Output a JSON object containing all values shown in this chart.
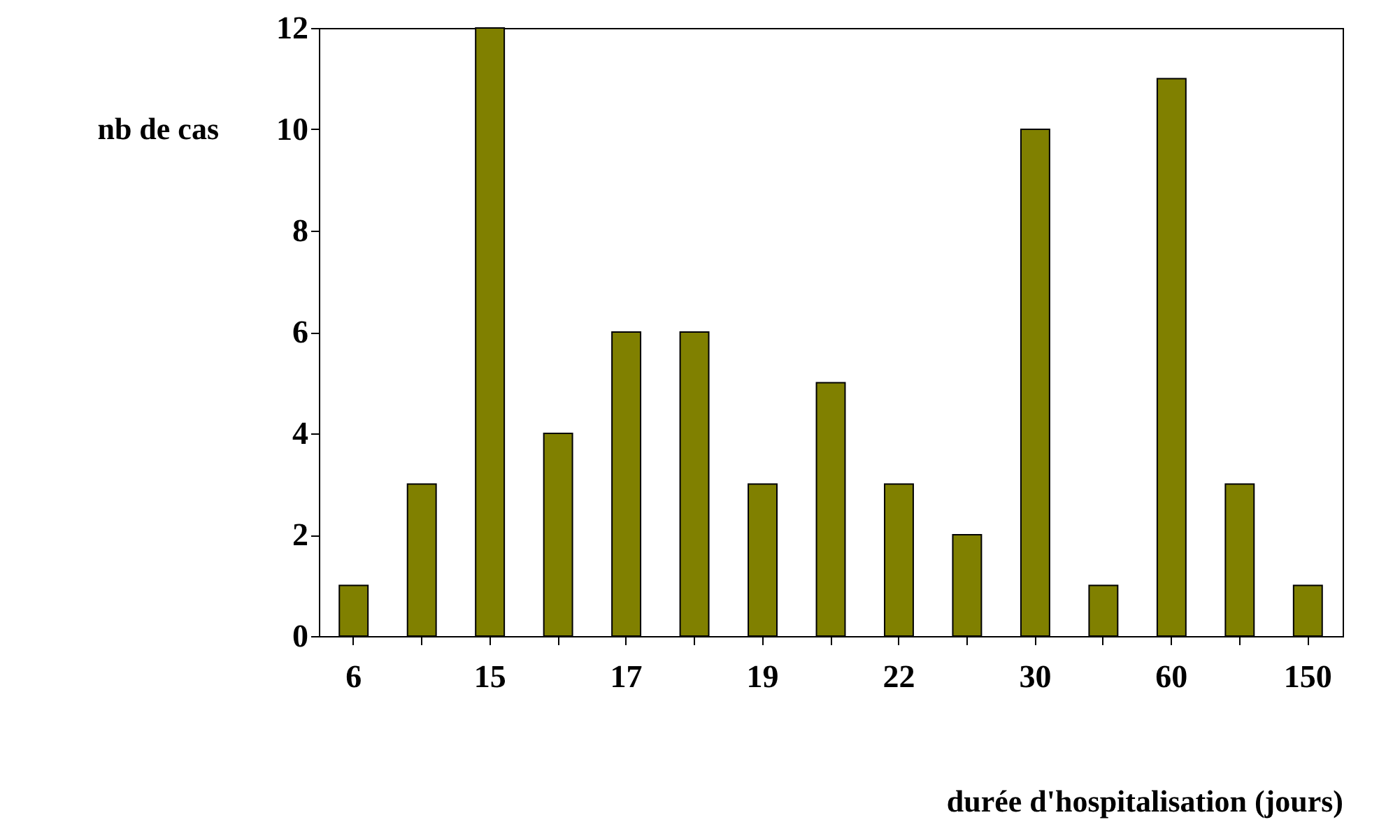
{
  "chart_data": {
    "type": "bar",
    "xlabel": "durée d'hospitalisation (jours)",
    "ylabel": "nb de cas",
    "categories": [
      "6",
      null,
      "15",
      null,
      "17",
      null,
      "19",
      null,
      "22",
      null,
      "30",
      null,
      "60",
      null,
      "150"
    ],
    "values": [
      1,
      3,
      12,
      4,
      6,
      6,
      3,
      5,
      3,
      2,
      10,
      1,
      11,
      3,
      1
    ],
    "color": "#808000",
    "ylim": [
      0,
      12
    ],
    "yticks": [
      0,
      2,
      4,
      6,
      8,
      10,
      12
    ],
    "grid": false
  }
}
